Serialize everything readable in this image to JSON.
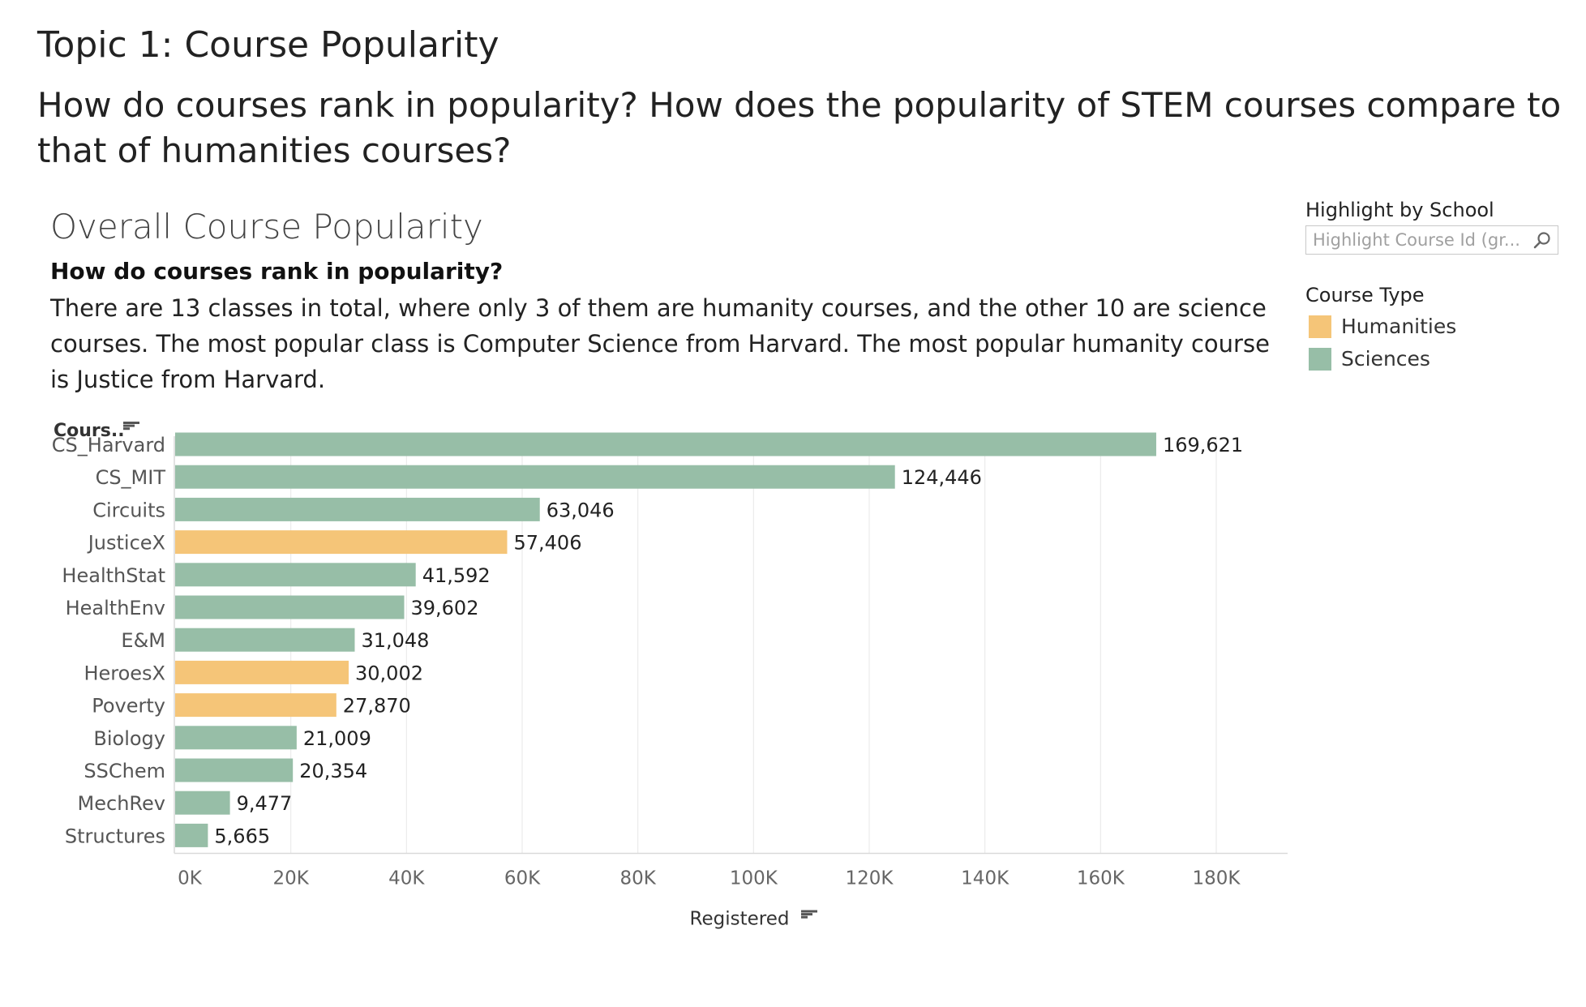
{
  "header": {
    "topic_title": "Topic 1: Course Popularity",
    "main_question": "How do courses rank in popularity? How does the popularity of STEM courses compare to that of humanities courses?"
  },
  "chart_header": {
    "title": "Overall Course Popularity",
    "subtitle": "How do courses rank in popularity?",
    "description": "There are 13 classes in total, where only 3 of them are humanity courses, and the other 10 are science courses. The most popular class is Computer Science from Harvard. The most popular humanity course is Justice from Harvard."
  },
  "filter": {
    "label": "Highlight by School",
    "placeholder": "Highlight Course Id (gr..."
  },
  "legend": {
    "title": "Course Type",
    "items": [
      {
        "label": "Humanities",
        "color": "#f5c578"
      },
      {
        "label": "Sciences",
        "color": "#97bea7"
      }
    ]
  },
  "icons": {
    "search": "search-icon",
    "sort": "sort-icon"
  },
  "chart_data": {
    "type": "bar",
    "orientation": "horizontal",
    "ylabel": "Cours..",
    "xlabel": "Registered",
    "xlim": [
      0,
      180000
    ],
    "x_ticks": [
      0,
      20000,
      40000,
      60000,
      80000,
      100000,
      120000,
      140000,
      160000,
      180000
    ],
    "x_tick_labels": [
      "0K",
      "20K",
      "40K",
      "60K",
      "80K",
      "100K",
      "120K",
      "140K",
      "160K",
      "180K"
    ],
    "grid": "vertical",
    "legend_position": "right",
    "categories": [
      "CS_Harvard",
      "CS_MIT",
      "Circuits",
      "JusticeX",
      "HealthStat",
      "HealthEnv",
      "E&M",
      "HeroesX",
      "Poverty",
      "Biology",
      "SSChem",
      "MechRev",
      "Structures"
    ],
    "values": [
      169621,
      124446,
      63046,
      57406,
      41592,
      39602,
      31048,
      30002,
      27870,
      21009,
      20354,
      9477,
      5665
    ],
    "value_labels": [
      "169,621",
      "124,446",
      "63,046",
      "57,406",
      "41,592",
      "39,602",
      "31,048",
      "30,002",
      "27,870",
      "21,009",
      "20,354",
      "9,477",
      "5,665"
    ],
    "course_type": [
      "Sciences",
      "Sciences",
      "Sciences",
      "Humanities",
      "Sciences",
      "Sciences",
      "Sciences",
      "Humanities",
      "Humanities",
      "Sciences",
      "Sciences",
      "Sciences",
      "Sciences"
    ]
  }
}
